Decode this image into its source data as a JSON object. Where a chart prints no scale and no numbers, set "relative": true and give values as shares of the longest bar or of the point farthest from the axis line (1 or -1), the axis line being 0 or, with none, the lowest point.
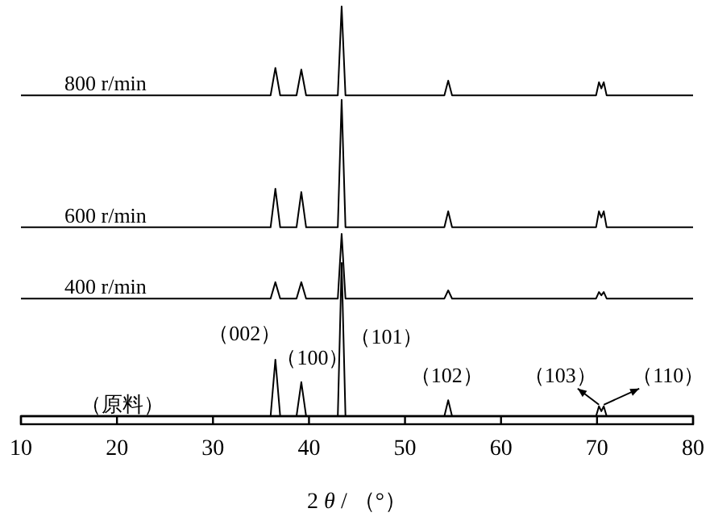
{
  "chart_data": {
    "type": "line",
    "relative": true,
    "xlabel": "2 *θ* / （°）",
    "xlim": [
      10,
      80
    ],
    "xticks": [
      10,
      20,
      30,
      40,
      50,
      60,
      70,
      80
    ],
    "tick_labels": "x",
    "grid": false,
    "x": [
      10,
      36.0,
      36.5,
      37.0,
      38.7,
      39.2,
      39.7,
      43.0,
      43.4,
      43.8,
      54.1,
      54.5,
      54.9,
      69.9,
      70.2,
      70.45,
      70.7,
      71.0,
      80
    ],
    "series": [
      {
        "name": "800 r/min",
        "color": "#000000",
        "values": [
          0.783,
          0.783,
          0.85,
          0.783,
          0.783,
          0.846,
          0.783,
          0.783,
          1.0,
          0.783,
          0.783,
          0.819,
          0.783,
          0.783,
          0.815,
          0.8,
          0.815,
          0.783,
          0.783
        ]
      },
      {
        "name": "600 r/min",
        "color": "#000000",
        "values": [
          0.461,
          0.461,
          0.555,
          0.461,
          0.461,
          0.547,
          0.461,
          0.461,
          0.772,
          0.461,
          0.461,
          0.5,
          0.461,
          0.461,
          0.5,
          0.485,
          0.5,
          0.461,
          0.461
        ]
      },
      {
        "name": "400 r/min",
        "color": "#000000",
        "values": [
          0.287,
          0.287,
          0.327,
          0.287,
          0.287,
          0.327,
          0.287,
          0.287,
          0.445,
          0.287,
          0.287,
          0.307,
          0.287,
          0.287,
          0.303,
          0.295,
          0.303,
          0.287,
          0.287
        ]
      },
      {
        "name": "（原料）",
        "color": "#000000",
        "values": [
          0,
          0,
          0.138,
          0,
          0,
          0.083,
          0,
          0,
          0.374,
          0,
          0,
          0.039,
          0,
          0,
          0.024,
          0.012,
          0.024,
          0,
          0
        ]
      }
    ],
    "annotations": [
      {
        "text": "（002）",
        "x": 36.5,
        "y": 0.138
      },
      {
        "text": "（100）",
        "x": 39.2,
        "y": 0.083
      },
      {
        "text": "（101）",
        "x": 43.4,
        "y": 0.374
      },
      {
        "text": "（102）",
        "x": 54.5,
        "y": 0.039
      },
      {
        "text": "（103）",
        "x": 70.2,
        "y": 0.024
      },
      {
        "text": "（110）",
        "x": 70.7,
        "y": 0.024
      }
    ]
  }
}
